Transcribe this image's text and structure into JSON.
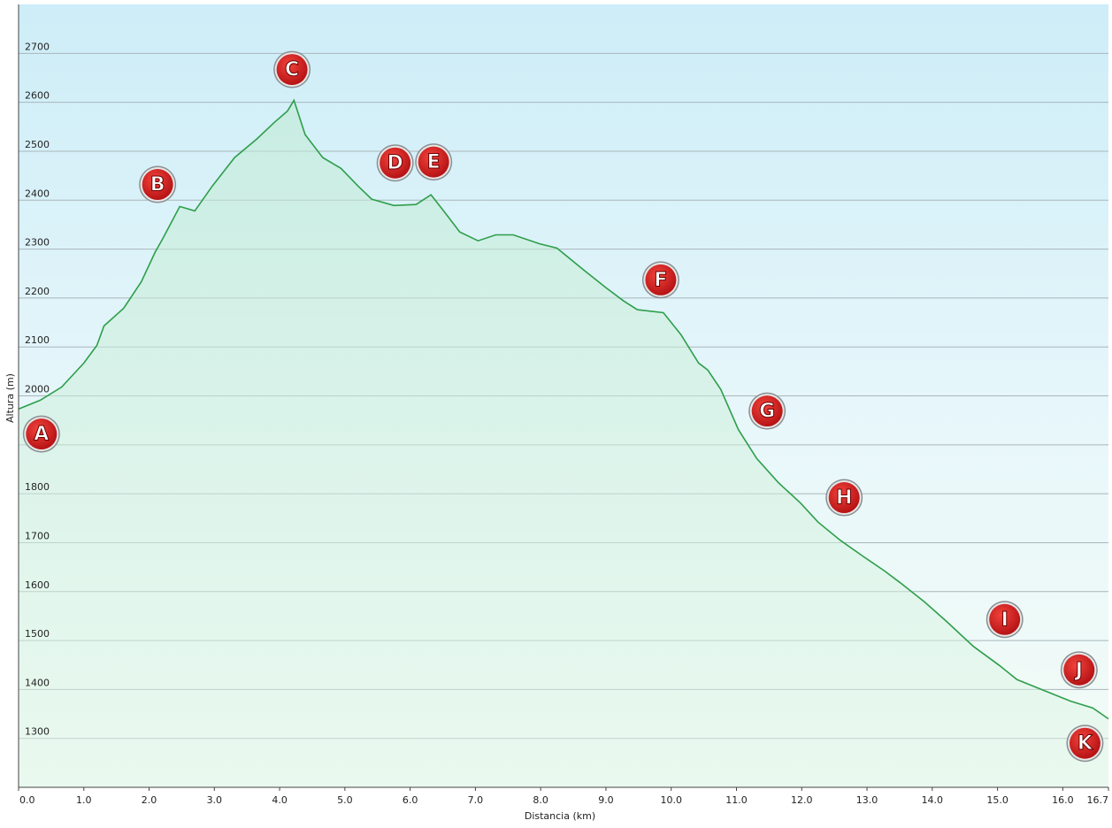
{
  "chart_data": {
    "type": "area",
    "x_label": "Distancia (km)",
    "y_label": "Altura (m)",
    "color": "#2e9e4a",
    "grid": true,
    "xlim": [
      0,
      16.7
    ],
    "ylim": [
      1200,
      2800
    ],
    "xticks": [
      {
        "value": 0,
        "label": "0.0"
      },
      {
        "value": 1,
        "label": "1.0"
      },
      {
        "value": 2,
        "label": "2.0"
      },
      {
        "value": 3,
        "label": "3.0"
      },
      {
        "value": 4,
        "label": "4.0"
      },
      {
        "value": 5,
        "label": "5.0"
      },
      {
        "value": 6,
        "label": "6.0"
      },
      {
        "value": 7,
        "label": "7.0"
      },
      {
        "value": 8,
        "label": "8.0"
      },
      {
        "value": 9,
        "label": "9.0"
      },
      {
        "value": 10,
        "label": "10.0"
      },
      {
        "value": 11,
        "label": "11.0"
      },
      {
        "value": 12,
        "label": "12.0"
      },
      {
        "value": 13,
        "label": "13.0"
      },
      {
        "value": 14,
        "label": "14.0"
      },
      {
        "value": 15,
        "label": "15.0"
      },
      {
        "value": 16,
        "label": "16.0"
      },
      16.7
    ],
    "yticks": [
      1300,
      1400,
      1500,
      1600,
      1700,
      1800,
      1900,
      2000,
      2100,
      2200,
      2300,
      2400,
      2500,
      2600,
      2700
    ],
    "x": [
      0,
      0.33,
      0.66,
      1.0,
      1.2,
      1.31,
      1.61,
      1.88,
      2.09,
      2.22,
      2.47,
      2.7,
      2.97,
      3.31,
      3.65,
      3.92,
      4.12,
      4.22,
      4.39,
      4.66,
      4.94,
      5.2,
      5.41,
      5.75,
      6.09,
      6.32,
      6.49,
      6.76,
      7.04,
      7.31,
      7.58,
      7.98,
      8.25,
      8.66,
      9.0,
      9.27,
      9.48,
      9.88,
      10.15,
      10.42,
      10.56,
      10.76,
      11.03,
      11.31,
      11.64,
      11.98,
      12.25,
      12.59,
      12.93,
      13.27,
      13.54,
      13.88,
      14.22,
      14.63,
      15.03,
      15.3,
      15.71,
      16.12,
      16.46,
      16.7
    ],
    "values": [
      1973,
      1991,
      2018,
      2067,
      2103,
      2143,
      2179,
      2233,
      2293,
      2324,
      2387,
      2378,
      2429,
      2487,
      2525,
      2559,
      2582,
      2604,
      2534,
      2487,
      2465,
      2429,
      2402,
      2389,
      2391,
      2411,
      2382,
      2335,
      2317,
      2329,
      2329,
      2311,
      2302,
      2257,
      2221,
      2194,
      2176,
      2170,
      2125,
      2067,
      2053,
      2013,
      1931,
      1872,
      1823,
      1781,
      1742,
      1705,
      1673,
      1642,
      1615,
      1579,
      1539,
      1488,
      1449,
      1420,
      1398,
      1376,
      1362,
      1340
    ],
    "annotations": [
      {
        "label": "A",
        "x": 0.35,
        "y": 1922
      },
      {
        "label": "B",
        "x": 2.13,
        "y": 2432
      },
      {
        "label": "C",
        "x": 4.19,
        "y": 2667
      },
      {
        "label": "D",
        "x": 5.77,
        "y": 2476
      },
      {
        "label": "E",
        "x": 6.36,
        "y": 2478
      },
      {
        "label": "F",
        "x": 9.84,
        "y": 2237
      },
      {
        "label": "G",
        "x": 11.47,
        "y": 1969
      },
      {
        "label": "H",
        "x": 12.65,
        "y": 1792
      },
      {
        "label": "I",
        "x": 15.11,
        "y": 1543
      },
      {
        "label": "J",
        "x": 16.25,
        "y": 1440
      },
      {
        "label": "K",
        "x": 16.34,
        "y": 1290
      }
    ]
  }
}
